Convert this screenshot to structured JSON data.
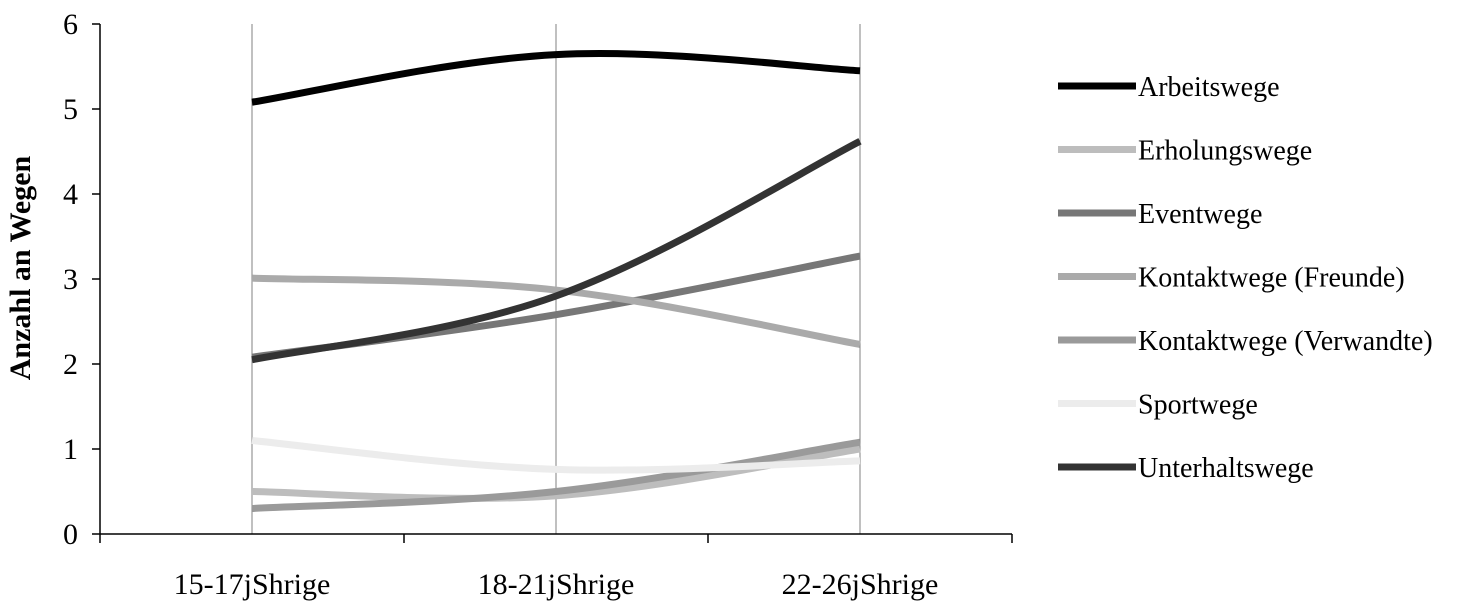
{
  "chart_data": {
    "type": "line",
    "title": "",
    "xlabel": "",
    "ylabel": "Anzahl an Wegen",
    "ylim": [
      0,
      6
    ],
    "yticks": [
      0,
      1,
      2,
      3,
      4,
      5,
      6
    ],
    "grid": "vertical lines at categories",
    "legend_position": "right",
    "categories": [
      "15-17jShrige",
      "18-21jShrige",
      "22-26jShrige"
    ],
    "series": [
      {
        "name": "Arbeitswege",
        "color": "#000000",
        "values": [
          5.08,
          5.64,
          5.45
        ]
      },
      {
        "name": "Erholungswege",
        "color": "#bdbdbd",
        "values": [
          0.5,
          0.45,
          1.0
        ]
      },
      {
        "name": "Eventwege",
        "color": "#777777",
        "values": [
          2.08,
          2.58,
          3.27
        ]
      },
      {
        "name": "Kontaktwege (Freunde)",
        "color": "#aaaaaa",
        "values": [
          3.01,
          2.87,
          2.23
        ]
      },
      {
        "name": "Kontaktwege (Verwandte)",
        "color": "#9a9a9a",
        "values": [
          0.3,
          0.5,
          1.08
        ]
      },
      {
        "name": "Sportwege",
        "color": "#ececec",
        "values": [
          1.1,
          0.76,
          0.86
        ]
      },
      {
        "name": "Unterhaltswege",
        "color": "#333333",
        "values": [
          2.05,
          2.8,
          4.62
        ]
      }
    ]
  }
}
